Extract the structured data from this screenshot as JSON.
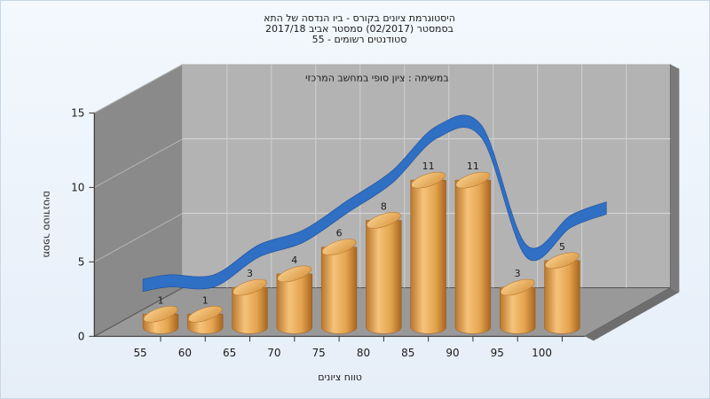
{
  "chart_data": {
    "type": "bar",
    "title": [
      "היסטוגרמת ציונים בקורס - ביו הנדסה של התא",
      "בסמסטר  (02/2017)  סמסטר אביב 2017/18",
      "סטודנטים רשומים - 55"
    ],
    "subtitle": "במשימה : ציון סופי במחשב המרכזי",
    "xlabel": "טווח ציונים",
    "ylabel": "מספר סטודנטים",
    "categories": [
      "55",
      "60",
      "65",
      "70",
      "75",
      "80",
      "85",
      "90",
      "95",
      "100"
    ],
    "values": [
      1,
      1,
      3,
      4,
      6,
      8,
      11,
      11,
      3,
      5
    ],
    "ylim": [
      0,
      15
    ],
    "yticks": [
      "0",
      "5",
      "10",
      "15"
    ],
    "grid": true,
    "bar_color": "#e3a44f",
    "trend_color": "#2f6fc4"
  }
}
